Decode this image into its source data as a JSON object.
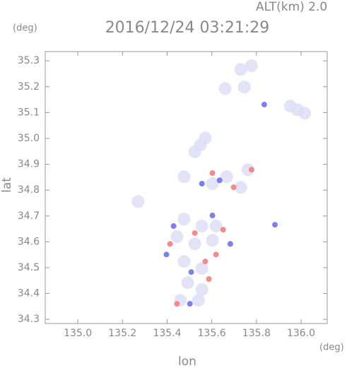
{
  "chart_data": {
    "type": "scatter",
    "title": "2016/12/24 03:21:29",
    "subtitle": "ALT(km) 2.0",
    "y_unit": "(deg)",
    "x_unit": "(deg)",
    "x_label": "lon",
    "y_label": "lat",
    "xlim": [
      134.854,
      136.117
    ],
    "ylim": [
      34.284,
      35.336
    ],
    "xticks": [
      {
        "value": 135.0,
        "label": "135.0"
      },
      135.2,
      135.4,
      135.6,
      135.8,
      {
        "value": 136.0,
        "label": "136.0"
      }
    ],
    "yticks": [
      34.3,
      34.4,
      34.5,
      34.6,
      34.7,
      34.8,
      34.9,
      {
        "value": 35.0,
        "label": "35.0"
      },
      35.1,
      35.2,
      35.3
    ],
    "series": [
      {
        "color": "#dcdcf6",
        "x": [
          135.549,
          135.571,
          135.524,
          135.73,
          135.778,
          135.66,
          135.746,
          135.984,
          136.016,
          135.952,
          135.667,
          135.603,
          135.73,
          135.762,
          135.476,
          135.476,
          135.556,
          135.619,
          135.444,
          135.524,
          135.603,
          135.476,
          135.556,
          135.492,
          135.556,
          135.46,
          135.54,
          135.27
        ],
        "values": [
          34.975,
          35.002,
          34.948,
          35.267,
          35.281,
          35.193,
          35.199,
          35.111,
          35.098,
          35.125,
          34.852,
          34.825,
          34.811,
          34.879,
          34.852,
          34.688,
          34.661,
          34.661,
          34.62,
          34.592,
          34.606,
          34.524,
          34.497,
          34.442,
          34.415,
          34.374,
          34.374,
          34.756
        ]
      },
      {
        "color": "#f07878",
        "x": [
          135.778,
          135.698,
          135.603,
          135.524,
          135.619,
          135.587,
          135.444,
          135.413,
          135.571,
          135.651
        ],
        "values": [
          34.879,
          34.811,
          34.866,
          34.634,
          34.551,
          34.456,
          34.36,
          34.592,
          34.524,
          34.647
        ]
      },
      {
        "color": "#6a6ae8",
        "x": [
          135.835,
          135.883,
          135.635,
          135.508,
          135.429,
          135.603,
          135.502,
          135.683,
          135.397,
          135.556
        ],
        "values": [
          35.131,
          34.666,
          34.838,
          34.483,
          34.661,
          34.702,
          34.36,
          34.592,
          34.551,
          34.825
        ]
      }
    ]
  }
}
